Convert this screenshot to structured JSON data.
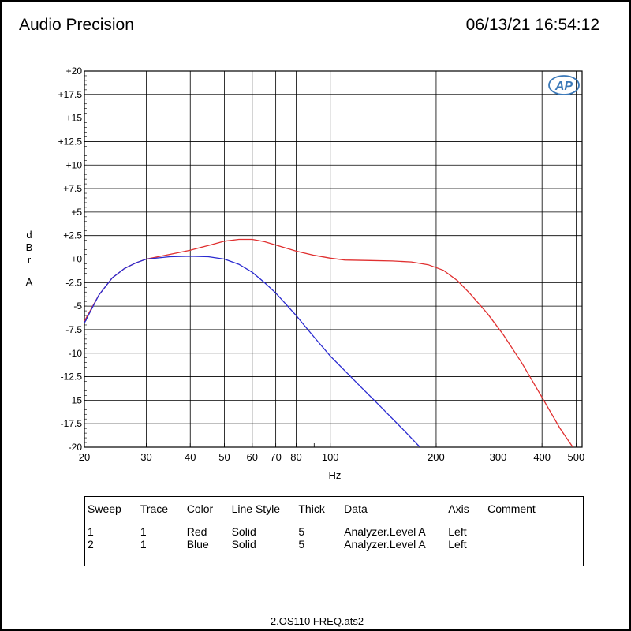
{
  "header": {
    "brand": "Audio Precision",
    "timestamp": "06/13/21 16:54:12"
  },
  "logo_text": "AP",
  "footer": {
    "filename": "2.OS110 FREQ.ats2"
  },
  "legend_table": {
    "headers": [
      "Sweep",
      "Trace",
      "Color",
      "Line Style",
      "Thick",
      "Data",
      "Axis",
      "Comment"
    ],
    "rows": [
      [
        "1",
        "1",
        "Red",
        "Solid",
        "5",
        "Analyzer.Level A",
        "Left",
        ""
      ],
      [
        "2",
        "1",
        "Blue",
        "Solid",
        "5",
        "Analyzer.Level A",
        "Left",
        ""
      ]
    ]
  },
  "chart_data": {
    "type": "line",
    "xlabel": "Hz",
    "ylabel": "dBr A",
    "x_scale": "log",
    "xlim": [
      20,
      520
    ],
    "ylim": [
      -20,
      20
    ],
    "grid": true,
    "x_ticks": [
      20,
      30,
      40,
      50,
      60,
      70,
      80,
      100,
      200,
      300,
      400,
      500
    ],
    "x_tick_labels": [
      "20",
      "30",
      "40",
      "50",
      "60",
      "70",
      "80",
      "100",
      "200",
      "300",
      "400",
      "500"
    ],
    "y_ticks": [
      20,
      17.5,
      15,
      12.5,
      10,
      7.5,
      5,
      2.5,
      0,
      -2.5,
      -5,
      -7.5,
      -10,
      -12.5,
      -15,
      -17.5,
      -20
    ],
    "y_tick_labels": [
      "+20",
      "+17.5",
      "+15",
      "+12.5",
      "+10",
      "+7.5",
      "+5",
      "+2.5",
      "+0",
      "-2.5",
      "-5",
      "-7.5",
      "-10",
      "-12.5",
      "-15",
      "-17.5",
      "-20"
    ],
    "series": [
      {
        "color": "#e03030",
        "x": [
          20,
          22,
          24,
          26,
          28,
          30,
          35,
          40,
          45,
          50,
          55,
          60,
          65,
          70,
          80,
          90,
          100,
          110,
          130,
          150,
          170,
          190,
          210,
          230,
          250,
          280,
          310,
          350,
          400,
          450,
          500
        ],
        "y": [
          -6.6,
          -3.8,
          -2.0,
          -1.0,
          -0.4,
          0.0,
          0.5,
          0.95,
          1.45,
          1.9,
          2.1,
          2.1,
          1.85,
          1.5,
          0.85,
          0.4,
          0.1,
          -0.1,
          -0.15,
          -0.2,
          -0.3,
          -0.6,
          -1.2,
          -2.3,
          -3.7,
          -5.8,
          -8.0,
          -11.0,
          -14.7,
          -18.0,
          -20.5
        ]
      },
      {
        "color": "#2a2ad0",
        "x": [
          20,
          22,
          24,
          26,
          28,
          30,
          35,
          40,
          45,
          50,
          55,
          60,
          65,
          70,
          80,
          90,
          100,
          120,
          140,
          160,
          180
        ],
        "y": [
          -6.8,
          -3.8,
          -2.0,
          -1.0,
          -0.4,
          0.0,
          0.25,
          0.3,
          0.25,
          0.0,
          -0.55,
          -1.4,
          -2.5,
          -3.6,
          -6.0,
          -8.3,
          -10.3,
          -13.3,
          -15.8,
          -18.0,
          -20.0
        ]
      }
    ]
  }
}
